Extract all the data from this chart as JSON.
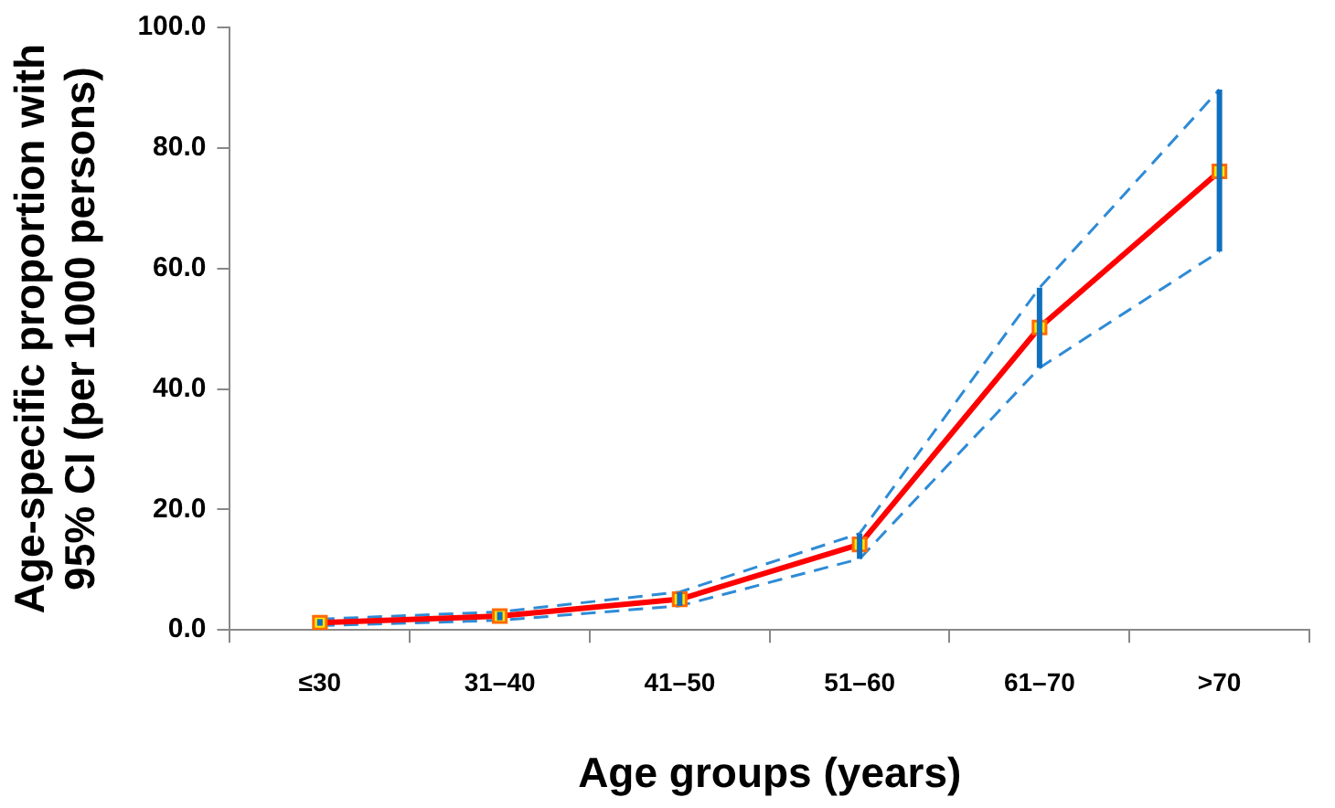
{
  "chart_data": {
    "type": "line",
    "xlabel": "Age groups (years)",
    "ylabel": "Age-specific proportion with 95% CI (per 1000 persons)",
    "categories": [
      "≤30",
      "31–40",
      "41–50",
      "51–60",
      "61–70",
      ">70"
    ],
    "series": [
      {
        "color": "#ff0000",
        "values": [
          1.2,
          2.3,
          5.1,
          14.2,
          50.2,
          76.1
        ],
        "errors": [
          [
            0.7,
            1.8
          ],
          [
            1.6,
            3.0
          ],
          [
            4.0,
            6.3
          ],
          [
            11.8,
            16.0
          ],
          [
            43.5,
            56.8
          ],
          [
            62.8,
            89.7
          ]
        ]
      },
      {
        "color": "#2e8bd6",
        "values": [
          0.7,
          1.6,
          4.0,
          11.8,
          43.5,
          62.8
        ],
        "line_style": "dashed",
        "marker": "none"
      },
      {
        "color": "#2e8bd6",
        "values": [
          1.8,
          3.0,
          6.3,
          16.0,
          56.8,
          89.7
        ],
        "line_style": "dashed",
        "marker": "none"
      }
    ],
    "ylim": [
      0,
      100
    ],
    "yticks": [
      {
        "value": 0,
        "label": "0.0"
      },
      {
        "value": 20,
        "label": "20.0"
      },
      {
        "value": 40,
        "label": "40.0"
      },
      {
        "value": 60,
        "label": "60.0"
      },
      {
        "value": 80,
        "label": "80.0"
      },
      {
        "value": 100,
        "label": "100.0"
      }
    ],
    "grid": false,
    "legend": false,
    "marker": "square",
    "line_style": "solid"
  }
}
